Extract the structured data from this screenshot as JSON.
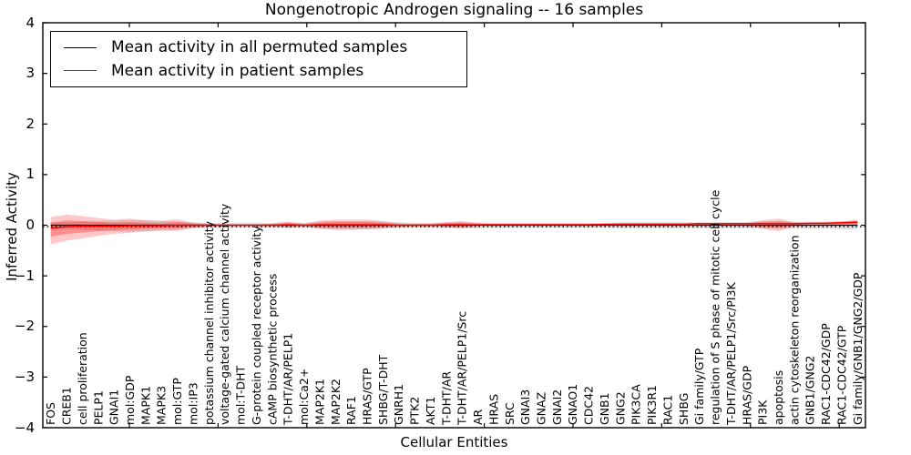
{
  "chart_data": {
    "type": "line",
    "title": "Nongenotropic Androgen signaling -- 16 samples",
    "xlabel": "Cellular Entities",
    "ylabel": "Inferred Activity",
    "ylim": [
      -4,
      4
    ],
    "yticks": [
      4,
      3,
      2,
      1,
      0,
      -1,
      -2,
      -3,
      -4
    ],
    "grid": false,
    "legend_position": "upper left",
    "legend": [
      {
        "label": "Mean activity in all permuted samples",
        "color": "#000000"
      },
      {
        "label": "Mean activity in patient samples",
        "color": "#ff0000"
      }
    ],
    "categories": [
      "FOS",
      "CREB1",
      "cell proliferation",
      "PELP1",
      "GNAI1",
      "mol:GDP",
      "MAPK1",
      "MAPK3",
      "mol:GTP",
      "mol:IP3",
      "potassium channel inhibitor activity",
      "voltage-gated calcium channel activity",
      "mol:T-DHT",
      "G-protein coupled receptor activity",
      "cAMP biosynthetic process",
      "T-DHT/AR/PELP1",
      "mol:Ca2+",
      "MAP2K1",
      "MAP2K2",
      "RAF1",
      "HRAS/GTP",
      "SHBG/T-DHT",
      "GNRH1",
      "PTK2",
      "AKT1",
      "T-DHT/AR",
      "T-DHT/AR/PELP1/Src",
      "AR",
      "HRAS",
      "SRC",
      "GNAI3",
      "GNAZ",
      "GNAI2",
      "GNAO1",
      "CDC42",
      "GNB1",
      "GNG2",
      "PIK3CA",
      "PIK3R1",
      "RAC1",
      "SHBG",
      "Gi family/GTP",
      "regulation of S phase of mitotic cell cycle",
      "T-DHT/AR/PELP1/Src/PI3K",
      "HRAS/GDP",
      "PI3K",
      "apoptosis",
      "actin cytoskeleton reorganization",
      "GNB1/GNG2",
      "RAC1-CDC42/GDP",
      "RAC1-CDC42/GTP",
      "Gi family/GNB1/GNG2/GDP"
    ],
    "series": [
      {
        "name": "Mean activity in all permuted samples",
        "color": "#000000",
        "values": [
          0,
          0,
          0,
          0,
          0,
          0,
          0,
          0,
          0,
          0,
          0,
          0,
          0,
          0,
          0,
          0,
          0,
          0,
          0,
          0,
          0,
          0,
          0,
          0,
          0,
          0,
          0,
          0,
          0,
          0,
          0,
          0,
          0,
          0,
          0,
          0,
          0,
          0,
          0,
          0,
          0,
          0,
          0,
          0,
          0,
          0,
          0,
          0,
          0,
          0,
          0,
          0
        ]
      },
      {
        "name": "Mean activity in patient samples",
        "color": "#ff0000",
        "values": [
          -0.06,
          -0.03,
          -0.02,
          -0.02,
          -0.02,
          -0.01,
          -0.01,
          -0.01,
          0,
          0,
          0,
          0,
          0,
          0,
          0,
          0.01,
          0,
          0.01,
          0.01,
          0.01,
          0.01,
          0.01,
          0,
          0,
          0,
          0.01,
          0.01,
          0.01,
          0.01,
          0.01,
          0.01,
          0.01,
          0.01,
          0.01,
          0.01,
          0.02,
          0.02,
          0.02,
          0.02,
          0.02,
          0.02,
          0.03,
          0.03,
          0.03,
          0.03,
          0.03,
          0.03,
          0.03,
          0.04,
          0.04,
          0.05,
          0.06
        ]
      }
    ],
    "bands": [
      {
        "name": "permuted-samples-std",
        "color": "#aaaaaa",
        "alpha": 0.35,
        "upper": [
          0.05,
          0.06,
          0.07,
          0.08,
          0.09,
          0.1,
          0.1,
          0.09,
          0.07,
          0.06,
          0.05,
          0.05,
          0.05,
          0.05,
          0.05,
          0.06,
          0.05,
          0.07,
          0.08,
          0.08,
          0.08,
          0.07,
          0.06,
          0.05,
          0.05,
          0.06,
          0.06,
          0.06,
          0.05,
          0.05,
          0.05,
          0.05,
          0.05,
          0.05,
          0.05,
          0.05,
          0.06,
          0.06,
          0.06,
          0.06,
          0.06,
          0.06,
          0.06,
          0.06,
          0.06,
          0.07,
          0.07,
          0.07,
          0.07,
          0.07,
          0.08,
          0.08
        ],
        "lower": [
          -0.06,
          -0.08,
          -0.09,
          -0.11,
          -0.12,
          -0.13,
          -0.12,
          -0.11,
          -0.09,
          -0.07,
          -0.05,
          -0.05,
          -0.05,
          -0.05,
          -0.05,
          -0.06,
          -0.05,
          -0.07,
          -0.08,
          -0.08,
          -0.08,
          -0.07,
          -0.06,
          -0.05,
          -0.05,
          -0.06,
          -0.06,
          -0.06,
          -0.05,
          -0.05,
          -0.05,
          -0.05,
          -0.05,
          -0.05,
          -0.05,
          -0.05,
          -0.06,
          -0.06,
          -0.06,
          -0.06,
          -0.06,
          -0.06,
          -0.06,
          -0.06,
          -0.06,
          -0.07,
          -0.07,
          -0.07,
          -0.07,
          -0.07,
          -0.08,
          -0.08
        ]
      },
      {
        "name": "patient-samples-std",
        "color": "#ff0000",
        "alpha": 0.22,
        "upper": [
          0.16,
          0.21,
          0.18,
          0.14,
          0.11,
          0.13,
          0.1,
          0.08,
          0.12,
          0.05,
          0.03,
          0.02,
          0.02,
          0.02,
          0.03,
          0.07,
          0.03,
          0.09,
          0.11,
          0.11,
          0.11,
          0.08,
          0.04,
          0.03,
          0.03,
          0.06,
          0.08,
          0.04,
          0.03,
          0.03,
          0.03,
          0.03,
          0.03,
          0.03,
          0.03,
          0.03,
          0.04,
          0.04,
          0.04,
          0.04,
          0.04,
          0.05,
          0.05,
          0.05,
          0.05,
          0.1,
          0.13,
          0.06,
          0.05,
          0.06,
          0.07,
          0.11
        ],
        "lower": [
          -0.38,
          -0.3,
          -0.26,
          -0.21,
          -0.17,
          -0.15,
          -0.12,
          -0.1,
          -0.11,
          -0.05,
          -0.02,
          -0.01,
          -0.01,
          -0.01,
          -0.02,
          -0.05,
          -0.02,
          -0.07,
          -0.09,
          -0.09,
          -0.08,
          -0.06,
          -0.03,
          -0.02,
          -0.02,
          -0.04,
          -0.06,
          -0.02,
          -0.01,
          -0.01,
          -0.01,
          -0.01,
          -0.01,
          -0.01,
          -0.01,
          -0.01,
          -0.01,
          -0.01,
          -0.01,
          -0.01,
          -0.01,
          -0.01,
          -0.01,
          -0.01,
          -0.01,
          -0.07,
          -0.12,
          -0.02,
          -0.01,
          -0.01,
          -0.01,
          0.01
        ]
      }
    ],
    "zero_line": {
      "style": "dotted",
      "color": "#000000",
      "value": 0
    }
  }
}
